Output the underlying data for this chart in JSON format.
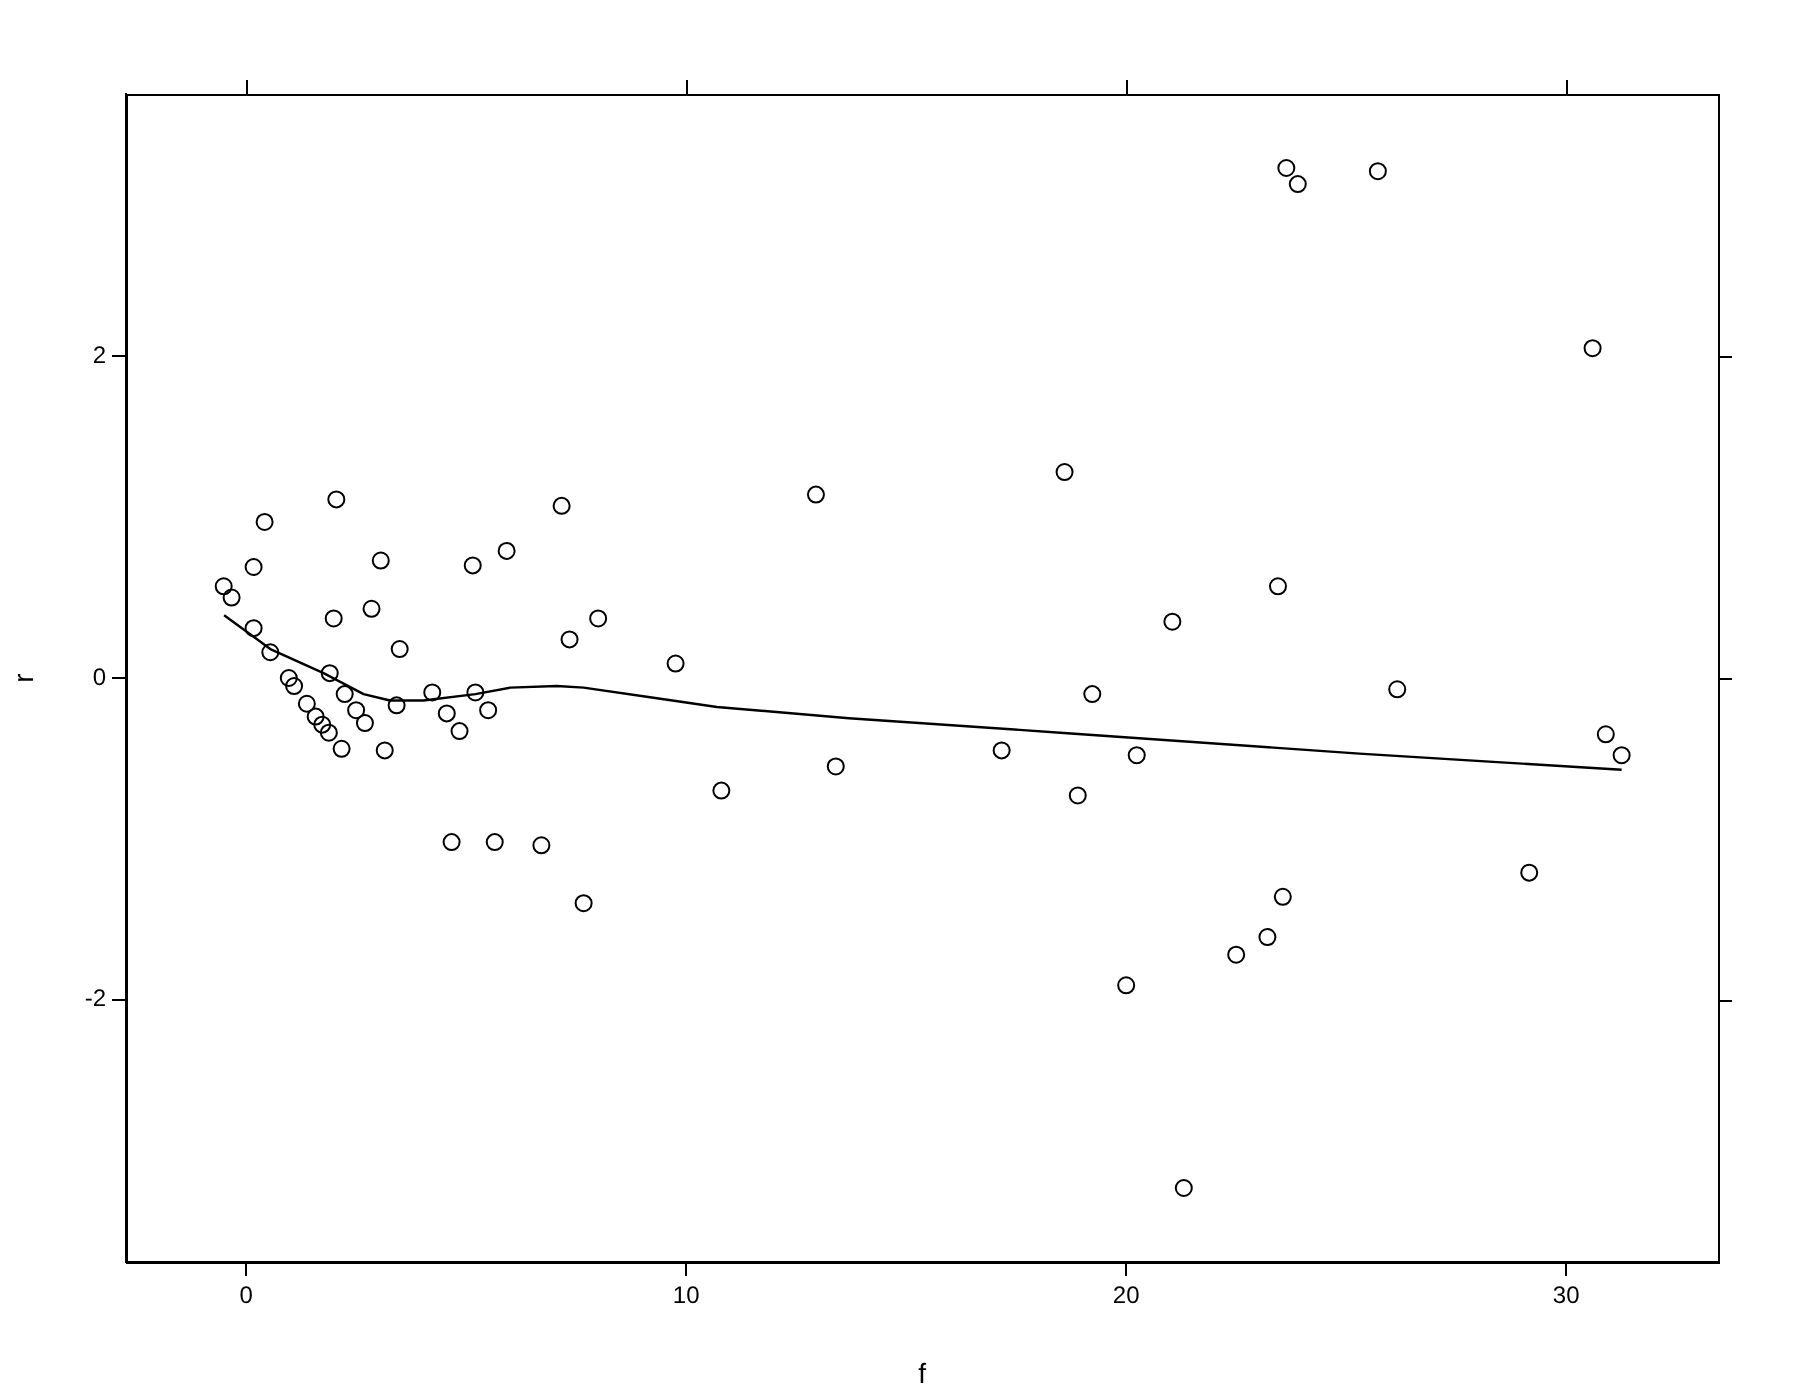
{
  "chart_data": {
    "type": "scatter",
    "xlabel": "f",
    "ylabel": "r",
    "xlim": [
      -2.73,
      33.45
    ],
    "ylim": [
      -3.63,
      3.63
    ],
    "xticks": [
      0,
      10,
      20,
      30
    ],
    "yticks": [
      -2,
      0,
      2
    ],
    "grid": false,
    "legend": false,
    "marker": "circle",
    "series": [
      {
        "type": "scatter",
        "color": "#000000",
        "x": [
          -0.51,
          -0.33,
          0.17,
          0.42,
          0.17,
          0.55,
          0.97,
          1.09,
          1.38,
          1.58,
          1.73,
          1.88,
          2.17,
          2.05,
          1.99,
          1.9,
          2.24,
          2.5,
          2.7,
          3.06,
          2.85,
          3.49,
          3.42,
          3.15,
          4.23,
          4.56,
          4.85,
          5.21,
          5.5,
          5.15,
          5.92,
          7.17,
          7.35,
          8.0,
          4.67,
          5.65,
          6.71,
          7.67,
          9.76,
          10.8,
          12.95,
          13.4,
          17.17,
          18.6,
          18.9,
          19.23,
          20.0,
          20.24,
          21.05,
          21.31,
          22.5,
          23.21,
          23.45,
          23.56,
          23.64,
          23.9,
          25.72,
          26.16,
          29.16,
          30.6,
          30.9,
          31.26
        ],
        "values": [
          0.57,
          0.5,
          0.69,
          0.97,
          0.31,
          0.16,
          0.0,
          -0.05,
          -0.16,
          -0.24,
          -0.29,
          -0.34,
          -0.44,
          1.11,
          0.37,
          0.03,
          -0.1,
          -0.2,
          -0.28,
          0.73,
          0.43,
          0.18,
          -0.17,
          -0.45,
          -0.09,
          -0.22,
          -0.33,
          -0.09,
          -0.2,
          0.7,
          0.79,
          1.07,
          0.24,
          0.37,
          -1.02,
          -1.02,
          -1.04,
          -1.4,
          0.09,
          -0.7,
          1.14,
          -0.55,
          -0.45,
          1.28,
          -0.73,
          -0.1,
          -1.91,
          -0.48,
          0.35,
          -3.17,
          -1.72,
          -1.61,
          0.57,
          -1.36,
          3.17,
          3.07,
          3.15,
          -0.07,
          -1.21,
          2.05,
          -0.35,
          -0.48
        ]
      },
      {
        "type": "line",
        "color": "#000000",
        "marker": "none",
        "line_style": "solid",
        "x": [
          -0.5,
          0.55,
          1.76,
          2.67,
          3.27,
          4.03,
          5.21,
          6.0,
          7.06,
          7.67,
          9.18,
          10.7,
          13.7,
          18.5,
          25.3,
          31.26
        ],
        "values": [
          0.39,
          0.18,
          0.03,
          -0.1,
          -0.14,
          -0.14,
          -0.1,
          -0.06,
          -0.05,
          -0.06,
          -0.12,
          -0.18,
          -0.25,
          -0.34,
          -0.47,
          -0.57
        ]
      }
    ]
  }
}
